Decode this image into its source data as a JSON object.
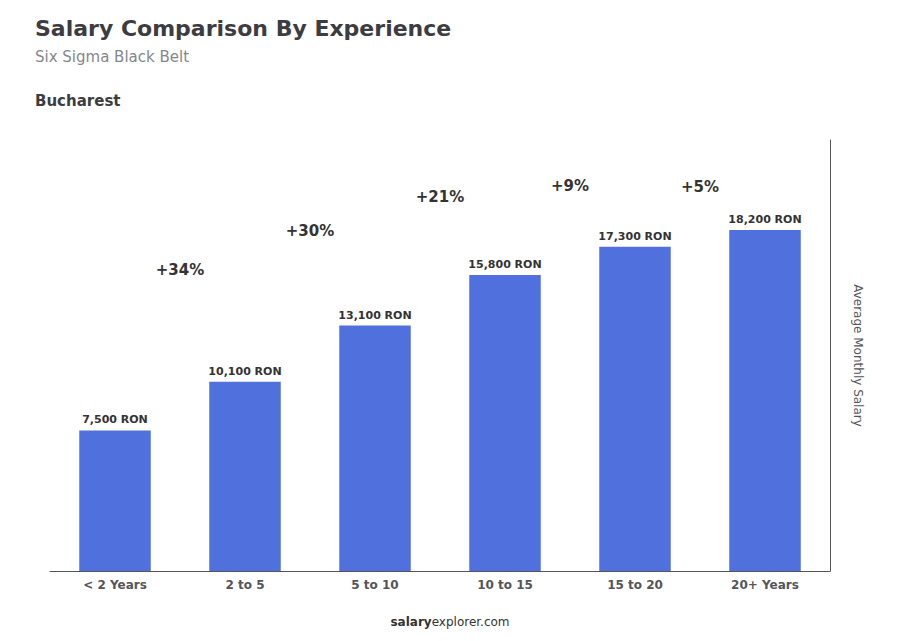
{
  "chart_data": {
    "type": "bar",
    "title": "Salary Comparison By Experience",
    "subtitle": "Six Sigma Black Belt",
    "annotations": [
      "Bucharest",
      "salary",
      "explorer.com"
    ],
    "ylabel": "Average Monthly Salary",
    "categories": [
      "< 2 Years",
      "2 to 5",
      "5 to 10",
      "10 to 15",
      "15 to 20",
      "20+ Years"
    ],
    "values": [
      7500,
      10100,
      13100,
      15800,
      17300,
      18200
    ],
    "value_labels": [
      "7,500 RON",
      "10,100 RON",
      "13,100 RON",
      "15,800 RON",
      "17,300 RON",
      "18,200 RON"
    ],
    "pct_labels": [
      "+34%",
      "+30%",
      "+21%",
      "+9%",
      "+5%"
    ],
    "data_labels": true,
    "ylim": [
      0,
      23000
    ],
    "tick_labels": "x",
    "grid": false
  }
}
